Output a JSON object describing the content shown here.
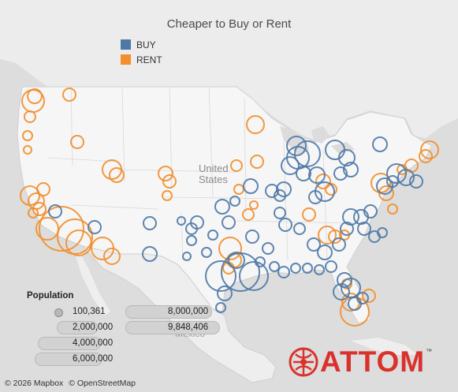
{
  "title": "Cheaper to Buy or Rent",
  "legend": {
    "items": [
      {
        "label": "BUY",
        "color": "#4e79a7"
      },
      {
        "label": "RENT",
        "color": "#f28e2b"
      }
    ]
  },
  "population_legend": {
    "title": "Population",
    "values": [
      "100,361",
      "2,000,000",
      "4,000,000",
      "6,000,000",
      "8,000,000",
      "9,848,406"
    ]
  },
  "map_labels": {
    "country": "United States",
    "mexico": "Mexico"
  },
  "attribution": {
    "mapbox": "© 2026 Mapbox",
    "osm": "© OpenStreetMap"
  },
  "logo": {
    "word": "ATTOM",
    "mark": "™",
    "color": "#d9322d"
  },
  "colors": {
    "buy": "#4e79a7",
    "rent": "#f28e2b",
    "land": "#f4f4f4",
    "water": "#dadada"
  }
}
